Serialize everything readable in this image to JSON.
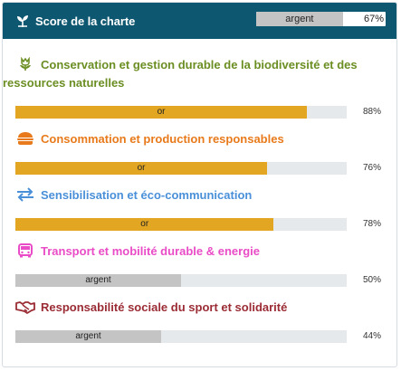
{
  "header": {
    "title": "Score de la charte",
    "icon": "leaf-sprout-icon",
    "level_label": "argent",
    "level_fraction": 0.67,
    "percent": "67%"
  },
  "sections": [
    {
      "title_line1": "Conservation et gestion durable de la biodiversité et des",
      "title_line2": "ressources naturelles",
      "icon": "flower-icon",
      "color": "#6b8e23",
      "level_label": "or",
      "fraction": 0.88,
      "percent": "88%",
      "fill_color": "#e2a623"
    },
    {
      "title_line1": "Consommation et production responsables",
      "icon": "burger-icon",
      "color": "#e87a1b",
      "level_label": "or",
      "fraction": 0.76,
      "percent": "76%",
      "fill_color": "#e2a623"
    },
    {
      "title_line1": "Sensibilisation et éco-communication",
      "icon": "exchange-arrows-icon",
      "color": "#4a90d9",
      "level_label": "or",
      "fraction": 0.78,
      "percent": "78%",
      "fill_color": "#e2a623"
    },
    {
      "title_line1": "Transport et mobilité durable & energie",
      "icon": "bus-icon",
      "color": "#e94cc6",
      "level_label": "argent",
      "fraction": 0.5,
      "percent": "50%",
      "fill_color": "#c4c4c4"
    },
    {
      "title_line1": "Responsabilité sociale du sport et solidarité",
      "icon": "handshake-icon",
      "color": "#9b2c35",
      "level_label": "argent",
      "fraction": 0.44,
      "percent": "44%",
      "fill_color": "#c4c4c4"
    }
  ]
}
